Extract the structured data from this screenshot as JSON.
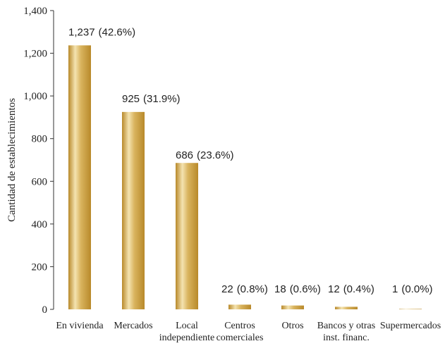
{
  "chart_data": {
    "type": "bar",
    "ylabel": "Cantidad de establecimientos",
    "ylim": [
      0,
      1400
    ],
    "yticks": [
      0,
      200,
      400,
      600,
      800,
      1000,
      1200,
      1400
    ],
    "ytick_labels": [
      "0",
      "200",
      "400",
      "600",
      "800",
      "1,000",
      "1,200",
      "1,400"
    ],
    "categories": [
      [
        "En vivienda"
      ],
      [
        "Mercados"
      ],
      [
        "Local",
        "independiente"
      ],
      [
        "Centros",
        "comerciales"
      ],
      [
        "Otros"
      ],
      [
        "Bancos y otras",
        "inst. financ."
      ],
      [
        "Supermercados"
      ]
    ],
    "values": [
      1237,
      925,
      686,
      22,
      18,
      12,
      1
    ],
    "value_labels": [
      "1,237",
      "925",
      "686",
      "22",
      "18",
      "12",
      "1"
    ],
    "percent_labels": [
      "(42.6%)",
      "(31.9%)",
      "(23.6%)",
      "(0.8%)",
      "(0.6%)",
      "(0.4%)",
      "(0.0%)"
    ],
    "bar_colors": {
      "dark": "#b8892a",
      "mid": "#d9b45e",
      "light": "#f4e3b0"
    },
    "grid": false
  }
}
